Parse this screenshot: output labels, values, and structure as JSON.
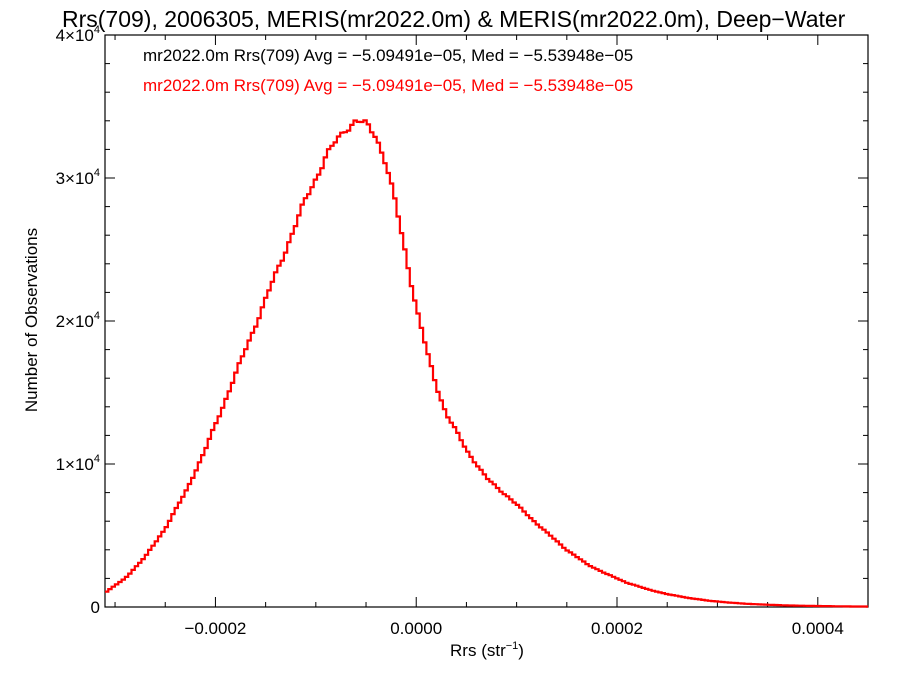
{
  "chart_data": {
    "type": "line",
    "title": "Rrs(709), 2006305, MERIS(mr2022.0m) & MERIS(mr2022.0m), Deep−Water",
    "xlabel_main": "Rrs (str",
    "xlabel_sup": "−1",
    "xlabel_close": ")",
    "ylabel": "Number of Observations",
    "xlim": [
      -0.00031,
      0.00045
    ],
    "ylim": [
      0,
      40000
    ],
    "x_ticks": [
      {
        "value": -0.0002,
        "label": "−0.0002"
      },
      {
        "value": 0.0,
        "label": "0.0000"
      },
      {
        "value": 0.0002,
        "label": "0.0002"
      },
      {
        "value": 0.0004,
        "label": "0.0004"
      }
    ],
    "y_ticks": [
      {
        "value": 0,
        "label": "0",
        "exp": ""
      },
      {
        "value": 10000,
        "label": "1×10",
        "exp": "4"
      },
      {
        "value": 20000,
        "label": "2×10",
        "exp": "4"
      },
      {
        "value": 30000,
        "label": "3×10",
        "exp": "4"
      },
      {
        "value": 40000,
        "label": "4×10",
        "exp": "4"
      }
    ],
    "annotations": [
      {
        "text": "mr2022.0m Rrs(709) Avg = −5.09491e−05, Med = −5.53948e−05",
        "color": "#000000"
      },
      {
        "text": "mr2022.0m Rrs(709) Avg = −5.09491e−05, Med = −5.53948e−05",
        "color": "#ff0000"
      }
    ],
    "series": [
      {
        "color": "#ff0000",
        "x": [
          -0.00031,
          -0.00029,
          -0.00027,
          -0.00025,
          -0.00023,
          -0.00021,
          -0.00019,
          -0.00017,
          -0.00015,
          -0.00013,
          -0.00011,
          -9e-05,
          -7e-05,
          -6e-05,
          -5e-05,
          -4e-05,
          -3e-05,
          -2e-05,
          -1e-05,
          0.0,
          1e-05,
          2e-05,
          3e-05,
          5e-05,
          7e-05,
          9e-05,
          0.00011,
          0.00013,
          0.00015,
          0.00017,
          0.00019,
          0.00021,
          0.00023,
          0.00025,
          0.00027,
          0.00029,
          0.00031,
          0.00033,
          0.00035,
          0.00037,
          0.00039,
          0.00041,
          0.00043,
          0.00045
        ],
        "y": [
          1000,
          2000,
          3500,
          5500,
          8000,
          11000,
          14500,
          18000,
          21500,
          25000,
          28500,
          31500,
          33500,
          34000,
          33700,
          33000,
          31000,
          28000,
          24500,
          21000,
          18000,
          15500,
          13500,
          11000,
          9000,
          7800,
          6500,
          5200,
          4000,
          3000,
          2300,
          1700,
          1250,
          900,
          650,
          450,
          320,
          220,
          160,
          110,
          80,
          60,
          40,
          30
        ]
      }
    ]
  }
}
